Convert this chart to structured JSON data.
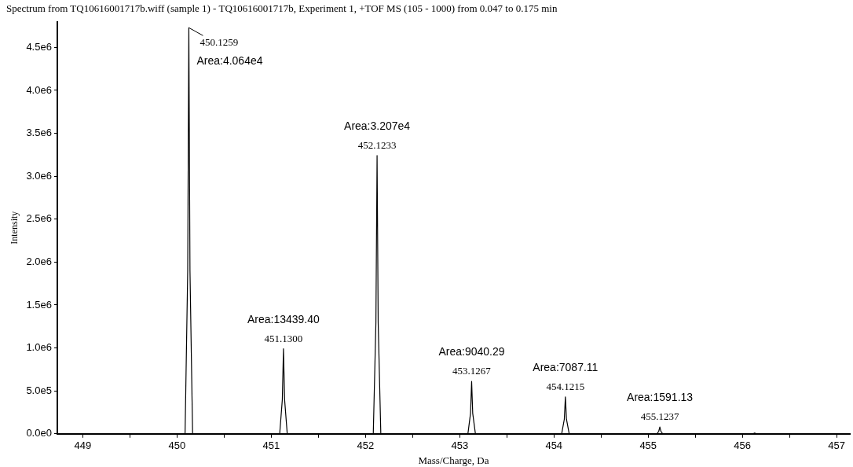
{
  "chart_data": {
    "type": "line",
    "title": "Spectrum from TQ10616001717b.wiff (sample 1) - TQ10616001717b, Experiment 1, +TOF MS (105 - 1000) from 0.047 to 0.175 min",
    "xlabel": "Mass/Charge, Da",
    "ylabel": "Intensity",
    "x": [
      448.73,
      450.086,
      450.114,
      450.1259,
      450.138,
      450.166,
      451.09,
      451.118,
      451.13,
      451.142,
      451.17,
      452.083,
      452.111,
      452.1233,
      452.135,
      452.163,
      453.087,
      453.115,
      453.1267,
      453.138,
      453.167,
      454.082,
      454.11,
      454.1215,
      454.133,
      454.162,
      455.094,
      455.112,
      455.1237,
      455.135,
      455.154,
      456.11,
      456.13,
      456.15,
      457.14
    ],
    "series": [
      {
        "color": "#000000",
        "values": [
          0,
          0,
          1900000,
          4730000,
          1900000,
          0,
          0,
          400000,
          990000,
          400000,
          0,
          0,
          1300000,
          3240000,
          1300000,
          0,
          0,
          240000,
          610000,
          240000,
          0,
          0,
          170000,
          430000,
          170000,
          0,
          0,
          30000,
          80000,
          30000,
          0,
          0,
          10000,
          0,
          0
        ]
      }
    ],
    "xlim": [
      448.73,
      457.14
    ],
    "xticks": [
      449,
      {
        "value": 449.5,
        "label": null
      },
      450,
      {
        "value": 450.5,
        "label": null
      },
      451,
      {
        "value": 451.5,
        "label": null
      },
      452,
      {
        "value": 452.5,
        "label": null
      },
      453,
      {
        "value": 453.5,
        "label": null
      },
      454,
      {
        "value": 454.5,
        "label": null
      },
      455,
      {
        "value": 455.5,
        "label": null
      },
      456,
      {
        "value": 456.5,
        "label": null
      },
      457
    ],
    "ylim": [
      0,
      4800000
    ],
    "yticks": [
      {
        "value": 0,
        "label": "0.0e0"
      },
      {
        "value": 500000,
        "label": "5.0e5"
      },
      {
        "value": 1000000,
        "label": "1.0e6"
      },
      {
        "value": 1500000,
        "label": "1.5e6"
      },
      {
        "value": 2000000,
        "label": "2.0e6"
      },
      {
        "value": 2500000,
        "label": "2.5e6"
      },
      {
        "value": 3000000,
        "label": "3.0e6"
      },
      {
        "value": 3500000,
        "label": "3.5e6"
      },
      {
        "value": 4000000,
        "label": "4.0e6"
      },
      {
        "value": 4500000,
        "label": "4.5e6"
      }
    ],
    "marker": "none",
    "line_style": "solid",
    "annotations": [
      {
        "text": "450.1259",
        "x": 450.1259,
        "y": 4730000
      },
      {
        "text": "Area:4.064e4",
        "x": 450.1259,
        "y": 4730000
      },
      {
        "text": "451.1300",
        "x": 451.13,
        "y": 990000
      },
      {
        "text": "Area:13439.40",
        "x": 451.13,
        "y": 990000
      },
      {
        "text": "452.1233",
        "x": 452.1233,
        "y": 3240000
      },
      {
        "text": "Area:3.207e4",
        "x": 452.1233,
        "y": 3240000
      },
      {
        "text": "453.1267",
        "x": 453.1267,
        "y": 610000
      },
      {
        "text": "Area:9040.29",
        "x": 453.1267,
        "y": 610000
      },
      {
        "text": "454.1215",
        "x": 454.1215,
        "y": 430000
      },
      {
        "text": "Area:7087.11",
        "x": 454.1215,
        "y": 430000
      },
      {
        "text": "455.1237",
        "x": 455.1237,
        "y": 80000
      },
      {
        "text": "Area:1591.13",
        "x": 455.1237,
        "y": 80000
      }
    ]
  }
}
